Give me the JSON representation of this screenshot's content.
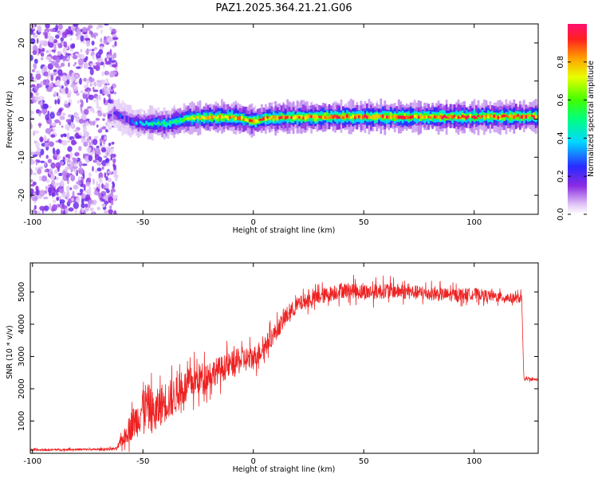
{
  "title": "PAZ1.2025.364.21.21.G06",
  "chart_data": [
    {
      "type": "heatmap",
      "xlabel": "Height of straight line (km)",
      "ylabel": "Frequency (Hz)",
      "xlim": [
        -101,
        129
      ],
      "ylim": [
        -25,
        25
      ],
      "xticks": [
        -100,
        -50,
        0,
        50,
        100
      ],
      "yticks": [
        -20,
        -10,
        0,
        10,
        20
      ],
      "colorbar": {
        "label": "Normalized spectral amplitude",
        "range": [
          0.0,
          1.0
        ],
        "ticks": [
          0.0,
          0.2,
          0.4,
          0.6,
          0.8
        ],
        "tick_labels": [
          "0.0",
          "0.2",
          "0.4",
          "0.6",
          "0.8"
        ]
      },
      "ridge": {
        "x": [
          -66,
          -63,
          -60,
          -55,
          -50,
          -45,
          -40,
          -35,
          -30,
          -25,
          -20,
          -15,
          -10,
          -5,
          0,
          5,
          10,
          20,
          40,
          60,
          80,
          100,
          120,
          128
        ],
        "frequency_hz": [
          0.5,
          1.5,
          0.5,
          -0.8,
          -1.2,
          -1.0,
          -1.3,
          -0.5,
          0.2,
          0.3,
          0.4,
          0.5,
          0.5,
          0.1,
          -0.6,
          0.2,
          0.4,
          0.5,
          0.6,
          0.6,
          0.6,
          0.6,
          0.7,
          0.7
        ],
        "peak_amplitude": [
          0.2,
          0.25,
          0.3,
          0.35,
          0.45,
          0.55,
          0.55,
          0.6,
          0.75,
          0.8,
          0.85,
          0.9,
          0.9,
          0.9,
          0.9,
          0.95,
          0.95,
          0.95,
          0.95,
          0.95,
          0.95,
          0.95,
          0.95,
          0.95
        ]
      },
      "noise_region_x": [
        -101,
        -62
      ]
    },
    {
      "type": "line",
      "xlabel": "Height of straight line (km)",
      "ylabel": "SNR (10 * v/v)",
      "xlim": [
        -101,
        129
      ],
      "ylim": [
        0,
        5900
      ],
      "xticks": [
        -100,
        -50,
        0,
        50,
        100
      ],
      "yticks": [
        1000,
        2000,
        3000,
        4000,
        5000
      ],
      "series": [
        {
          "name": "SNR",
          "color": "#ee2222",
          "x": [
            -101,
            -90,
            -80,
            -70,
            -62,
            -60,
            -57,
            -55,
            -52,
            -50,
            -47,
            -45,
            -42,
            -40,
            -37,
            -35,
            -30,
            -25,
            -20,
            -15,
            -10,
            -5,
            0,
            5,
            10,
            15,
            20,
            25,
            30,
            35,
            40,
            45,
            50,
            55,
            60,
            70,
            80,
            90,
            100,
            110,
            118,
            121.5,
            122.5,
            125,
            129
          ],
          "values": [
            100,
            110,
            120,
            120,
            140,
            350,
            650,
            900,
            1100,
            1500,
            1400,
            1200,
            1500,
            1600,
            1700,
            1800,
            2100,
            2300,
            2450,
            2600,
            2750,
            2900,
            2950,
            3300,
            3750,
            4250,
            4600,
            4750,
            4850,
            4950,
            5050,
            5050,
            5000,
            5000,
            5050,
            5000,
            4950,
            4900,
            4950,
            4850,
            4800,
            4800,
            2300,
            2300,
            2280
          ],
          "noise_amplitude": [
            40,
            40,
            40,
            40,
            60,
            200,
            400,
            600,
            700,
            900,
            900,
            800,
            800,
            800,
            750,
            700,
            650,
            600,
            550,
            500,
            500,
            500,
            450,
            400,
            350,
            350,
            300,
            300,
            300,
            300,
            300,
            300,
            300,
            300,
            300,
            280,
            260,
            250,
            220,
            200,
            180,
            180,
            60,
            50,
            50
          ]
        }
      ]
    }
  ]
}
